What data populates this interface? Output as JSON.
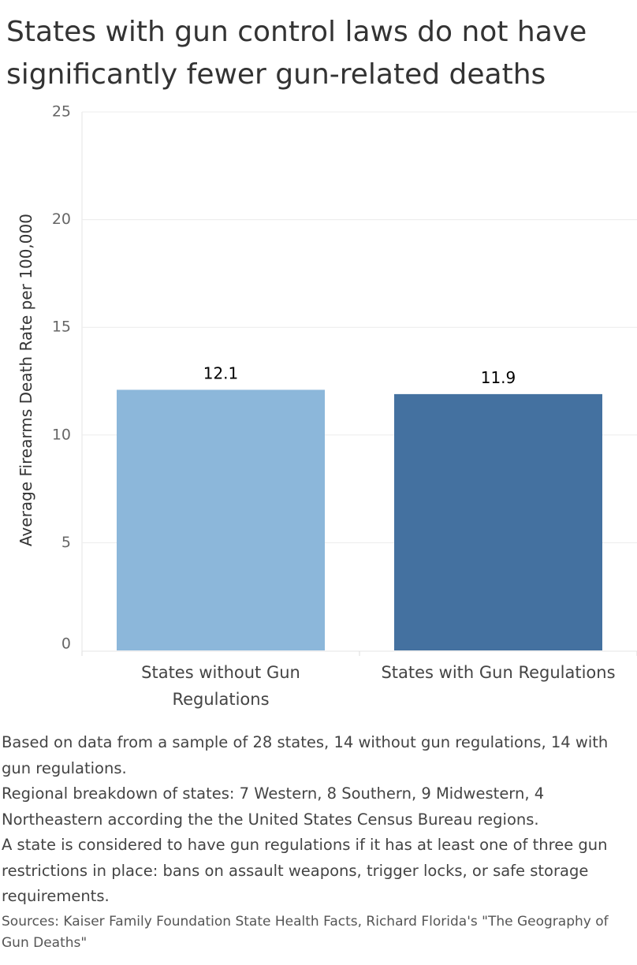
{
  "title": "States with gun control laws do not have significantly fewer gun-related deaths",
  "chart_data": {
    "type": "bar",
    "categories": [
      [
        "States without Gun",
        "Regulations"
      ],
      [
        "States with Gun Regulations"
      ]
    ],
    "values": [
      12.1,
      11.9
    ],
    "data_labels": [
      "12.1",
      "11.9"
    ],
    "colors": [
      "#8cb7da",
      "#4471a0"
    ],
    "xlabel": "",
    "ylabel": "Average Firearms Death Rate per 100,000",
    "ylim": [
      0,
      25
    ],
    "yticks": [
      0,
      5,
      10,
      15,
      20,
      25
    ],
    "grid": true,
    "legend": "none"
  },
  "footnotes": {
    "note_1": "Based on data from a sample of 28 states, 14 without gun regulations, 14 with gun regulations.",
    "note_2": "Regional breakdown of states: 7 Western, 8 Southern, 9 Midwestern, 4 Northeastern according the the United States Census Bureau regions.",
    "note_3": "A state is considered to have gun regulations if it has at least one of three gun restrictions in place: bans on assault weapons, trigger locks, or safe storage requirements.",
    "sources": "Sources: Kaiser Family Foundation State Health Facts, Richard Florida's \"The Geography of Gun Deaths\""
  }
}
